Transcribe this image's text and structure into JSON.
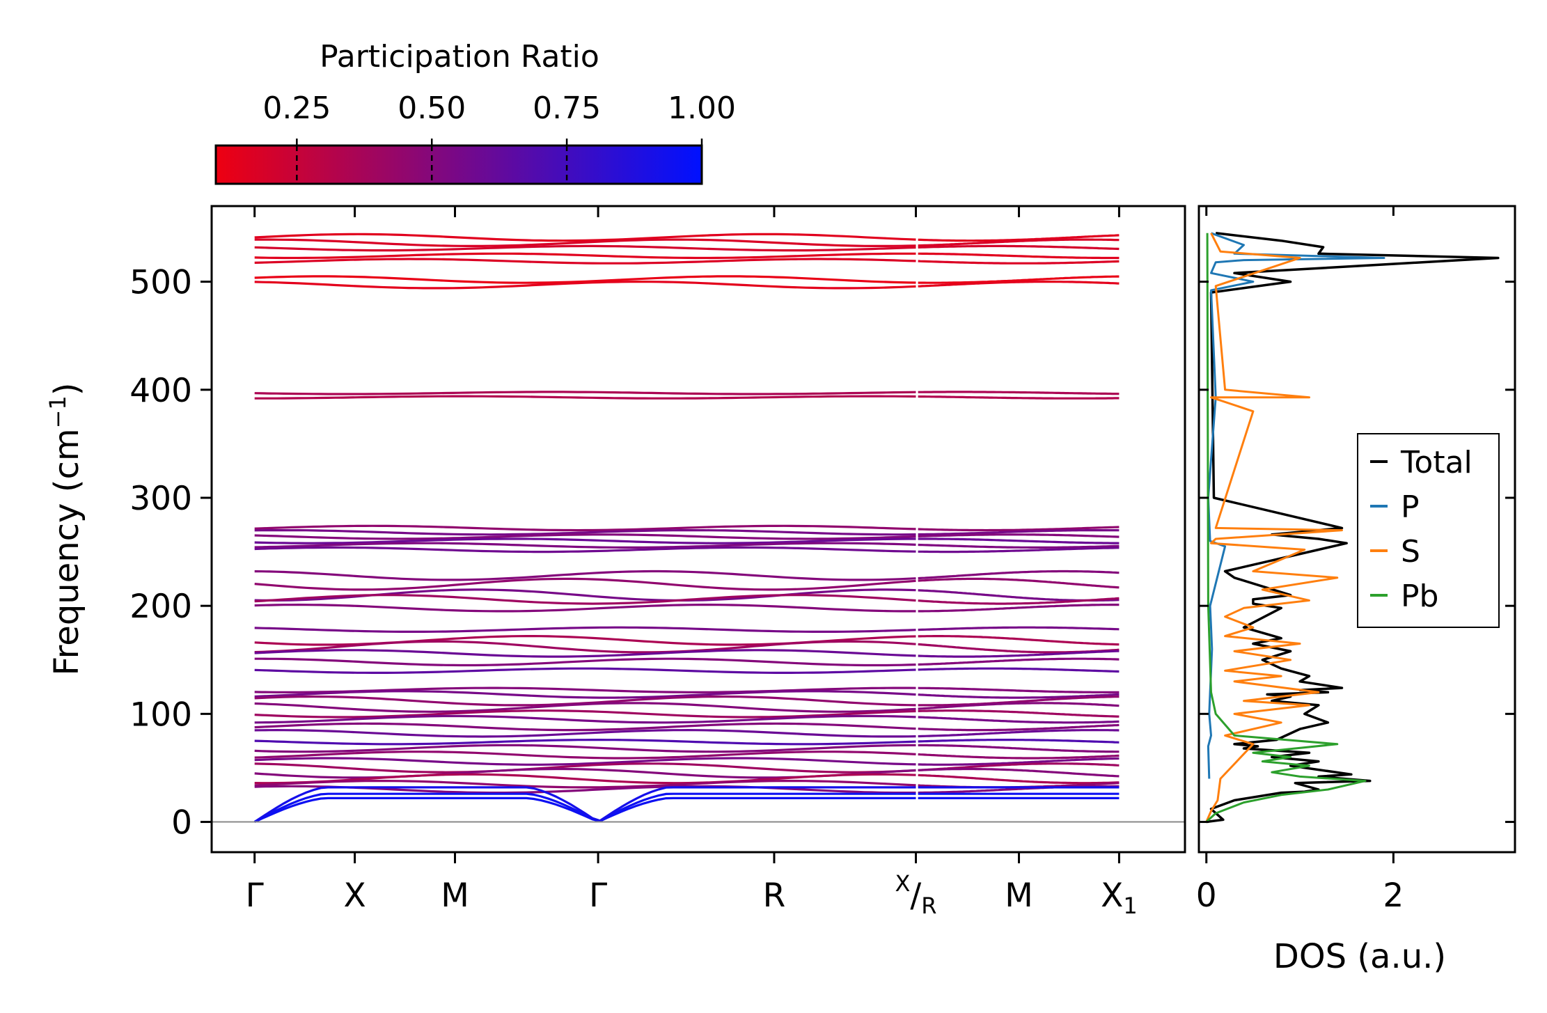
{
  "chart_data": [
    {
      "type": "line",
      "title": "",
      "ylabel": "Frequency (cm⁻¹)",
      "ylim": [
        -28,
        570
      ],
      "yticks": [
        0,
        100,
        200,
        300,
        400,
        500
      ],
      "xlim": [
        -0.3,
        6.5
      ],
      "path_labels": [
        {
          "pos": 0,
          "label": "Γ"
        },
        {
          "pos": 0.7,
          "label": "X"
        },
        {
          "pos": 1.4,
          "label": "M"
        },
        {
          "pos": 2.4,
          "label": "Γ"
        },
        {
          "pos": 3.63,
          "label": "R"
        },
        {
          "pos": 4.62,
          "label": "X/R",
          "sup": "X",
          "sub": "R"
        },
        {
          "pos": 5.34,
          "label": "M"
        },
        {
          "pos": 6.04,
          "label": "X₁"
        }
      ],
      "segment_break": 4.62,
      "zero_line": 0,
      "colorbar": {
        "title": "Participation Ratio",
        "range": [
          0.1,
          1.0
        ],
        "ticks": [
          0.25,
          0.5,
          0.75,
          1.0
        ],
        "tick_labels": [
          "0.25",
          "0.50",
          "0.75",
          "1.00"
        ],
        "colors": [
          "#ee0011",
          "#0011ff"
        ]
      },
      "acoustic_branches": [
        {
          "peak": 22,
          "pr": 0.95
        },
        {
          "peak": 26,
          "pr": 0.95
        },
        {
          "peak": 32,
          "pr": 0.92
        }
      ],
      "optical_bands": [
        {
          "f": 541,
          "a": 3,
          "pr": 0.15
        },
        {
          "f": 536,
          "a": 3,
          "pr": 0.18
        },
        {
          "f": 531,
          "a": 2,
          "pr": 0.2
        },
        {
          "f": 524,
          "a": 2,
          "pr": 0.15
        },
        {
          "f": 519,
          "a": 2,
          "pr": 0.17
        },
        {
          "f": 502,
          "a": 3,
          "pr": 0.12
        },
        {
          "f": 497,
          "a": 3,
          "pr": 0.14
        },
        {
          "f": 397,
          "a": 1,
          "pr": 0.35
        },
        {
          "f": 393,
          "a": 1,
          "pr": 0.33
        },
        {
          "f": 272,
          "a": 2,
          "pr": 0.45
        },
        {
          "f": 268,
          "a": 2,
          "pr": 0.55
        },
        {
          "f": 264,
          "a": 2,
          "pr": 0.5
        },
        {
          "f": 260,
          "a": 2,
          "pr": 0.6
        },
        {
          "f": 256,
          "a": 2,
          "pr": 0.52
        },
        {
          "f": 252,
          "a": 2,
          "pr": 0.58
        },
        {
          "f": 228,
          "a": 4,
          "pr": 0.5
        },
        {
          "f": 220,
          "a": 5,
          "pr": 0.45
        },
        {
          "f": 210,
          "a": 5,
          "pr": 0.55
        },
        {
          "f": 206,
          "a": 4,
          "pr": 0.4
        },
        {
          "f": 198,
          "a": 3,
          "pr": 0.5
        },
        {
          "f": 178,
          "a": 2,
          "pr": 0.55
        },
        {
          "f": 168,
          "a": 4,
          "pr": 0.35
        },
        {
          "f": 162,
          "a": 5,
          "pr": 0.4
        },
        {
          "f": 156,
          "a": 3,
          "pr": 0.6
        },
        {
          "f": 148,
          "a": 3,
          "pr": 0.5
        },
        {
          "f": 140,
          "a": 2,
          "pr": 0.65
        },
        {
          "f": 122,
          "a": 2,
          "pr": 0.5
        },
        {
          "f": 118,
          "a": 3,
          "pr": 0.55
        },
        {
          "f": 112,
          "a": 4,
          "pr": 0.45
        },
        {
          "f": 106,
          "a": 4,
          "pr": 0.5
        },
        {
          "f": 100,
          "a": 3,
          "pr": 0.4
        },
        {
          "f": 95,
          "a": 3,
          "pr": 0.55
        },
        {
          "f": 88,
          "a": 3,
          "pr": 0.5
        },
        {
          "f": 82,
          "a": 3,
          "pr": 0.6
        },
        {
          "f": 74,
          "a": 2,
          "pr": 0.7
        },
        {
          "f": 68,
          "a": 3,
          "pr": 0.5
        },
        {
          "f": 62,
          "a": 3,
          "pr": 0.45
        },
        {
          "f": 56,
          "a": 3,
          "pr": 0.55
        },
        {
          "f": 50,
          "a": 4,
          "pr": 0.4
        },
        {
          "f": 45,
          "a": 4,
          "pr": 0.5
        },
        {
          "f": 40,
          "a": 4,
          "pr": 0.35
        },
        {
          "f": 35,
          "a": 3,
          "pr": 0.45
        },
        {
          "f": 30,
          "a": 3,
          "pr": 0.5
        }
      ]
    },
    {
      "type": "line",
      "xlabel": "DOS (a.u.)",
      "ylim": [
        -28,
        570
      ],
      "xlim": [
        -0.08,
        3.3
      ],
      "xticks": [
        0,
        2
      ],
      "legend_position": "center-right",
      "series": [
        {
          "name": "Total",
          "color": "#000000",
          "x": [
            0,
            0.18,
            0.05,
            0.3,
            0.8,
            1.05,
            1.2,
            0.95,
            1.75,
            1.2,
            1.55,
            0.9,
            1.2,
            0.7,
            1.1,
            0.4,
            0.55,
            0.3,
            0.75,
            1.0,
            1.3,
            1.05,
            1.2,
            0.7,
            0.9,
            0.65,
            1.3,
            1.0,
            1.45,
            1.0,
            1.1,
            0.8,
            0.6,
            0.9,
            0.5,
            0.8,
            0.4,
            0.8,
            0.5,
            0.5,
            0.9,
            0.3,
            0.2,
            1.2,
            1.5,
            1.2,
            0.7,
            1.45,
            0.08,
            0.05,
            0.9,
            0.3,
            3.12,
            1.2,
            1.25,
            0.8,
            0.1
          ],
          "y": [
            0,
            2,
            12,
            20,
            27,
            28,
            30,
            36,
            38,
            42,
            44,
            52,
            56,
            60,
            64,
            68,
            70,
            72,
            76,
            86,
            92,
            100,
            108,
            112,
            116,
            118,
            120,
            122,
            124,
            130,
            135,
            142,
            150,
            158,
            165,
            170,
            180,
            198,
            202,
            206,
            210,
            226,
            232,
            252,
            258,
            262,
            266,
            272,
            300,
            490,
            500,
            508,
            522,
            526,
            532,
            538,
            545
          ]
        },
        {
          "name": "P",
          "color": "#1f77b4",
          "x": [
            0.03,
            0.02,
            0.05,
            0.03,
            0.04,
            0.05,
            0.06,
            0.05,
            0.04,
            0.2,
            0.04,
            0.02,
            0.1,
            0.05,
            0.5,
            0.05,
            0.1,
            0.4,
            1.9,
            0.3,
            0.4,
            0.05
          ],
          "y": [
            40,
            70,
            80,
            100,
            120,
            140,
            160,
            180,
            200,
            255,
            260,
            300,
            393,
            492,
            500,
            508,
            518,
            520,
            522,
            526,
            534,
            545
          ]
        },
        {
          "name": "S",
          "color": "#ff7f0e",
          "x": [
            0,
            0.05,
            0.12,
            0.15,
            0.5,
            0.2,
            0.8,
            0.3,
            1.1,
            0.4,
            1.2,
            0.3,
            0.8,
            0.2,
            0.9,
            0.3,
            1.0,
            0.2,
            0.5,
            0.2,
            0.4,
            1.1,
            0.6,
            1.4,
            0.5,
            1.05,
            0.05,
            0.1,
            1.45,
            0.1,
            0.5,
            0.05,
            1.1,
            0.2,
            0.1,
            1.0,
            0.15,
            0.05
          ],
          "y": [
            0,
            10,
            20,
            40,
            72,
            80,
            92,
            100,
            108,
            112,
            120,
            130,
            135,
            140,
            150,
            158,
            165,
            172,
            180,
            190,
            198,
            205,
            215,
            226,
            232,
            252,
            258,
            262,
            270,
            272,
            380,
            393,
            393,
            400,
            496,
            522,
            528,
            545
          ]
        },
        {
          "name": "Pb",
          "color": "#2ca02c",
          "x": [
            0,
            0.1,
            0.4,
            0.8,
            1.3,
            1.7,
            1.0,
            0.7,
            1.1,
            0.6,
            0.9,
            0.5,
            1.4,
            0.3,
            0.1,
            0.05,
            0.02,
            0.01
          ],
          "y": [
            0,
            8,
            18,
            25,
            30,
            38,
            42,
            46,
            52,
            56,
            60,
            64,
            72,
            80,
            100,
            120,
            200,
            545
          ]
        }
      ]
    }
  ]
}
